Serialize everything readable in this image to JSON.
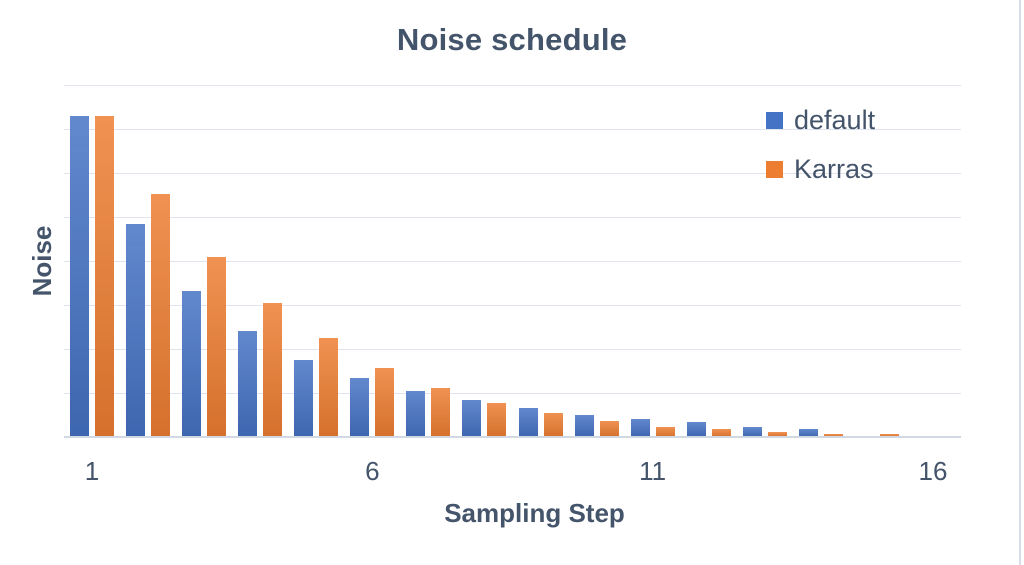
{
  "chart_data": {
    "type": "bar",
    "title": "Noise schedule",
    "xlabel": "Sampling Step",
    "ylabel": "Noise",
    "x": [
      1,
      2,
      3,
      4,
      5,
      6,
      7,
      8,
      9,
      10,
      11,
      12,
      13,
      14,
      15,
      16
    ],
    "x_tick_labels": [
      "1",
      "",
      "",
      "",
      "",
      "6",
      "",
      "",
      "",
      "",
      "11",
      "",
      "",
      "",
      "",
      "16"
    ],
    "ylim": [
      0,
      16
    ],
    "gridline_interval": 2,
    "grid": true,
    "legend_position": "top-right-inside",
    "text_color": "#44546A",
    "grid_color": "#dfe4ee",
    "series": [
      {
        "name": "default",
        "color": "#4472C4",
        "values": [
          14.6,
          9.7,
          6.65,
          4.8,
          3.5,
          2.7,
          2.1,
          1.68,
          1.3,
          1.02,
          0.8,
          0.67,
          0.45,
          0.35,
          0,
          0
        ]
      },
      {
        "name": "Karras",
        "color": "#ED7D31",
        "values": [
          14.6,
          11.05,
          8.2,
          6.1,
          4.5,
          3.15,
          2.24,
          1.55,
          1.08,
          0.74,
          0.45,
          0.35,
          0.22,
          0.15,
          0.12,
          0
        ]
      }
    ]
  }
}
